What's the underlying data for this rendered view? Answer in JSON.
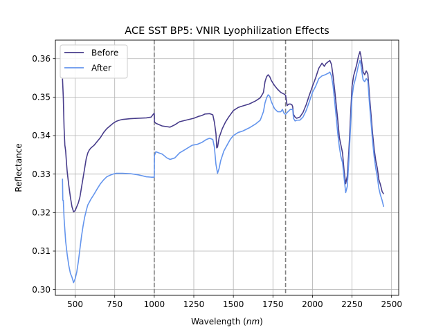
{
  "chart_data": {
    "type": "line",
    "title": "ACE SST BP5: VNIR Lyophilization Effects",
    "xlabel": "Wavelength",
    "xlabel_unit": "nm",
    "ylabel": "Reflectance",
    "xlim": [
      375,
      2545
    ],
    "ylim": [
      0.2985,
      0.3648
    ],
    "xticks": [
      500,
      750,
      1000,
      1250,
      1500,
      1750,
      2000,
      2250,
      2500
    ],
    "xtick_labels": [
      "500",
      "750",
      "1000",
      "1250",
      "1500",
      "1750",
      "2000",
      "2250",
      "2500"
    ],
    "yticks": [
      0.3,
      0.31,
      0.32,
      0.33,
      0.34,
      0.35,
      0.36
    ],
    "ytick_labels": [
      "0.30",
      "0.31",
      "0.32",
      "0.33",
      "0.34",
      "0.35",
      "0.36"
    ],
    "grid": true,
    "legend_position": "upper-left",
    "vlines": [
      1000,
      1830
    ],
    "series": [
      {
        "name": "Before",
        "color": "#483d8b",
        "points": [
          [
            420,
            0.3548
          ],
          [
            425,
            0.35
          ],
          [
            430,
            0.342
          ],
          [
            435,
            0.3375
          ],
          [
            440,
            0.336
          ],
          [
            445,
            0.333
          ],
          [
            450,
            0.3305
          ],
          [
            460,
            0.327
          ],
          [
            470,
            0.324
          ],
          [
            480,
            0.3215
          ],
          [
            490,
            0.3202
          ],
          [
            500,
            0.3205
          ],
          [
            510,
            0.3215
          ],
          [
            520,
            0.3225
          ],
          [
            530,
            0.324
          ],
          [
            540,
            0.3265
          ],
          [
            550,
            0.329
          ],
          [
            560,
            0.3315
          ],
          [
            570,
            0.334
          ],
          [
            580,
            0.3355
          ],
          [
            590,
            0.3363
          ],
          [
            600,
            0.3368
          ],
          [
            620,
            0.3375
          ],
          [
            640,
            0.3385
          ],
          [
            660,
            0.3395
          ],
          [
            680,
            0.3408
          ],
          [
            700,
            0.3418
          ],
          [
            720,
            0.3425
          ],
          [
            740,
            0.3432
          ],
          [
            760,
            0.3437
          ],
          [
            780,
            0.344
          ],
          [
            800,
            0.3442
          ],
          [
            850,
            0.3444
          ],
          [
            900,
            0.3445
          ],
          [
            950,
            0.3446
          ],
          [
            980,
            0.3448
          ],
          [
            995,
            0.3456
          ],
          [
            1000,
            0.3458
          ],
          [
            1001,
            0.3436
          ],
          [
            1010,
            0.3432
          ],
          [
            1050,
            0.3425
          ],
          [
            1100,
            0.3422
          ],
          [
            1130,
            0.3428
          ],
          [
            1160,
            0.3436
          ],
          [
            1200,
            0.344
          ],
          [
            1250,
            0.3445
          ],
          [
            1280,
            0.345
          ],
          [
            1300,
            0.3452
          ],
          [
            1320,
            0.3456
          ],
          [
            1350,
            0.3457
          ],
          [
            1370,
            0.3454
          ],
          [
            1380,
            0.3435
          ],
          [
            1390,
            0.3405
          ],
          [
            1395,
            0.3368
          ],
          [
            1400,
            0.337
          ],
          [
            1410,
            0.3395
          ],
          [
            1430,
            0.3418
          ],
          [
            1450,
            0.3435
          ],
          [
            1470,
            0.3448
          ],
          [
            1500,
            0.3465
          ],
          [
            1530,
            0.3473
          ],
          [
            1560,
            0.3477
          ],
          [
            1600,
            0.3482
          ],
          [
            1640,
            0.349
          ],
          [
            1670,
            0.3498
          ],
          [
            1690,
            0.3512
          ],
          [
            1700,
            0.354
          ],
          [
            1710,
            0.3553
          ],
          [
            1720,
            0.3558
          ],
          [
            1730,
            0.3553
          ],
          [
            1740,
            0.3543
          ],
          [
            1760,
            0.353
          ],
          [
            1780,
            0.352
          ],
          [
            1800,
            0.3512
          ],
          [
            1820,
            0.3508
          ],
          [
            1830,
            0.3505
          ],
          [
            1840,
            0.3478
          ],
          [
            1850,
            0.3482
          ],
          [
            1860,
            0.3482
          ],
          [
            1870,
            0.348
          ],
          [
            1875,
            0.3475
          ],
          [
            1880,
            0.3455
          ],
          [
            1890,
            0.3448
          ],
          [
            1900,
            0.3445
          ],
          [
            1920,
            0.3448
          ],
          [
            1940,
            0.346
          ],
          [
            1960,
            0.348
          ],
          [
            1980,
            0.3505
          ],
          [
            2000,
            0.3528
          ],
          [
            2020,
            0.355
          ],
          [
            2040,
            0.3575
          ],
          [
            2060,
            0.3588
          ],
          [
            2075,
            0.358
          ],
          [
            2085,
            0.3587
          ],
          [
            2100,
            0.3592
          ],
          [
            2110,
            0.3595
          ],
          [
            2120,
            0.3585
          ],
          [
            2130,
            0.3555
          ],
          [
            2140,
            0.352
          ],
          [
            2150,
            0.348
          ],
          [
            2160,
            0.344
          ],
          [
            2170,
            0.3395
          ],
          [
            2180,
            0.3375
          ],
          [
            2190,
            0.3355
          ],
          [
            2200,
            0.3308
          ],
          [
            2210,
            0.3275
          ],
          [
            2220,
            0.3295
          ],
          [
            2230,
            0.336
          ],
          [
            2240,
            0.3445
          ],
          [
            2250,
            0.3528
          ],
          [
            2260,
            0.3555
          ],
          [
            2270,
            0.357
          ],
          [
            2280,
            0.3585
          ],
          [
            2290,
            0.3605
          ],
          [
            2300,
            0.3618
          ],
          [
            2305,
            0.361
          ],
          [
            2310,
            0.3595
          ],
          [
            2320,
            0.3565
          ],
          [
            2330,
            0.3558
          ],
          [
            2340,
            0.3568
          ],
          [
            2350,
            0.356
          ],
          [
            2360,
            0.3505
          ],
          [
            2370,
            0.3455
          ],
          [
            2380,
            0.3405
          ],
          [
            2390,
            0.3365
          ],
          [
            2400,
            0.3335
          ],
          [
            2410,
            0.3315
          ],
          [
            2420,
            0.3285
          ],
          [
            2430,
            0.3272
          ],
          [
            2440,
            0.3255
          ],
          [
            2450,
            0.3248
          ]
        ]
      },
      {
        "name": "After",
        "color": "#6495ed",
        "points": [
          [
            420,
            0.3288
          ],
          [
            422,
            0.3232
          ],
          [
            425,
            0.3232
          ],
          [
            428,
            0.3205
          ],
          [
            430,
            0.3185
          ],
          [
            435,
            0.3155
          ],
          [
            440,
            0.3125
          ],
          [
            450,
            0.309
          ],
          [
            460,
            0.3062
          ],
          [
            470,
            0.3042
          ],
          [
            480,
            0.3032
          ],
          [
            490,
            0.3018
          ],
          [
            500,
            0.3028
          ],
          [
            510,
            0.3045
          ],
          [
            520,
            0.3072
          ],
          [
            530,
            0.3105
          ],
          [
            540,
            0.3138
          ],
          [
            550,
            0.3165
          ],
          [
            560,
            0.3188
          ],
          [
            570,
            0.3205
          ],
          [
            580,
            0.322
          ],
          [
            600,
            0.3235
          ],
          [
            620,
            0.3248
          ],
          [
            640,
            0.3262
          ],
          [
            660,
            0.3275
          ],
          [
            680,
            0.3285
          ],
          [
            700,
            0.3293
          ],
          [
            720,
            0.3297
          ],
          [
            740,
            0.33
          ],
          [
            760,
            0.3302
          ],
          [
            800,
            0.3302
          ],
          [
            850,
            0.3301
          ],
          [
            900,
            0.3298
          ],
          [
            950,
            0.3293
          ],
          [
            980,
            0.3292
          ],
          [
            1000,
            0.3292
          ],
          [
            1001,
            0.3348
          ],
          [
            1010,
            0.3358
          ],
          [
            1030,
            0.3355
          ],
          [
            1050,
            0.3352
          ],
          [
            1080,
            0.3342
          ],
          [
            1100,
            0.3338
          ],
          [
            1130,
            0.3342
          ],
          [
            1160,
            0.3355
          ],
          [
            1200,
            0.3365
          ],
          [
            1240,
            0.3375
          ],
          [
            1270,
            0.3377
          ],
          [
            1300,
            0.3382
          ],
          [
            1330,
            0.339
          ],
          [
            1350,
            0.3393
          ],
          [
            1370,
            0.339
          ],
          [
            1380,
            0.337
          ],
          [
            1390,
            0.3325
          ],
          [
            1400,
            0.3302
          ],
          [
            1410,
            0.3315
          ],
          [
            1420,
            0.3335
          ],
          [
            1440,
            0.336
          ],
          [
            1460,
            0.3375
          ],
          [
            1480,
            0.339
          ],
          [
            1500,
            0.34
          ],
          [
            1530,
            0.3408
          ],
          [
            1560,
            0.3412
          ],
          [
            1600,
            0.342
          ],
          [
            1640,
            0.343
          ],
          [
            1670,
            0.344
          ],
          [
            1690,
            0.3462
          ],
          [
            1700,
            0.3485
          ],
          [
            1710,
            0.3498
          ],
          [
            1720,
            0.3506
          ],
          [
            1730,
            0.3502
          ],
          [
            1740,
            0.3488
          ],
          [
            1760,
            0.347
          ],
          [
            1780,
            0.3462
          ],
          [
            1800,
            0.3462
          ],
          [
            1810,
            0.3468
          ],
          [
            1820,
            0.3458
          ],
          [
            1830,
            0.3455
          ],
          [
            1840,
            0.346
          ],
          [
            1860,
            0.3468
          ],
          [
            1875,
            0.3468
          ],
          [
            1880,
            0.3445
          ],
          [
            1890,
            0.3438
          ],
          [
            1900,
            0.344
          ],
          [
            1920,
            0.344
          ],
          [
            1940,
            0.3448
          ],
          [
            1960,
            0.3465
          ],
          [
            1980,
            0.3488
          ],
          [
            2000,
            0.3512
          ],
          [
            2020,
            0.3528
          ],
          [
            2040,
            0.3548
          ],
          [
            2060,
            0.3555
          ],
          [
            2080,
            0.3558
          ],
          [
            2100,
            0.3562
          ],
          [
            2110,
            0.3565
          ],
          [
            2120,
            0.3555
          ],
          [
            2130,
            0.353
          ],
          [
            2140,
            0.349
          ],
          [
            2150,
            0.3448
          ],
          [
            2160,
            0.3405
          ],
          [
            2170,
            0.337
          ],
          [
            2180,
            0.3345
          ],
          [
            2190,
            0.333
          ],
          [
            2200,
            0.329
          ],
          [
            2210,
            0.3252
          ],
          [
            2220,
            0.3268
          ],
          [
            2230,
            0.3335
          ],
          [
            2240,
            0.3418
          ],
          [
            2250,
            0.35
          ],
          [
            2260,
            0.353
          ],
          [
            2270,
            0.3545
          ],
          [
            2280,
            0.3562
          ],
          [
            2290,
            0.3582
          ],
          [
            2300,
            0.3595
          ],
          [
            2305,
            0.3588
          ],
          [
            2310,
            0.3572
          ],
          [
            2320,
            0.3545
          ],
          [
            2330,
            0.354
          ],
          [
            2340,
            0.3548
          ],
          [
            2350,
            0.3542
          ],
          [
            2360,
            0.3485
          ],
          [
            2370,
            0.3435
          ],
          [
            2380,
            0.3385
          ],
          [
            2390,
            0.3345
          ],
          [
            2400,
            0.3315
          ],
          [
            2410,
            0.3292
          ],
          [
            2420,
            0.3262
          ],
          [
            2430,
            0.3245
          ],
          [
            2440,
            0.3232
          ],
          [
            2450,
            0.3215
          ]
        ]
      }
    ]
  }
}
